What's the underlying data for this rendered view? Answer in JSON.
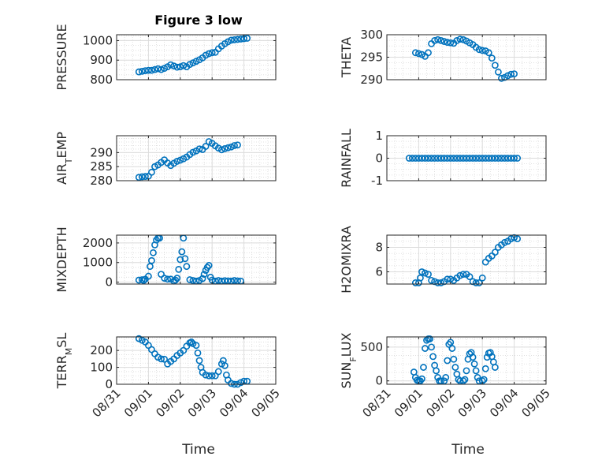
{
  "figure": {
    "title": "Figure 3 low"
  },
  "colors": {
    "marker": "#0072BD",
    "axis": "#262626",
    "grid": "#d9d9d9"
  },
  "chart_data": [
    {
      "type": "scatter",
      "ylabel": "PRESSURE",
      "ylabel_sub": "",
      "ylim": [
        800,
        1030
      ],
      "yticks": [
        800,
        900,
        1000
      ],
      "xlim": [
        0,
        5
      ],
      "xticks": [
        "08/31",
        "09/01",
        "09/02",
        "09/03",
        "09/04",
        "09/05"
      ],
      "show_xticklabels": false,
      "title": "Figure 3 low",
      "points": [
        [
          0.7,
          840
        ],
        [
          0.8,
          843
        ],
        [
          0.9,
          846
        ],
        [
          1.0,
          848
        ],
        [
          1.1,
          848
        ],
        [
          1.2,
          852
        ],
        [
          1.3,
          856
        ],
        [
          1.4,
          852
        ],
        [
          1.5,
          858
        ],
        [
          1.6,
          866
        ],
        [
          1.7,
          876
        ],
        [
          1.8,
          870
        ],
        [
          1.9,
          864
        ],
        [
          2.0,
          866
        ],
        [
          2.1,
          872
        ],
        [
          2.2,
          866
        ],
        [
          2.3,
          878
        ],
        [
          2.4,
          886
        ],
        [
          2.5,
          894
        ],
        [
          2.6,
          902
        ],
        [
          2.7,
          912
        ],
        [
          2.8,
          925
        ],
        [
          2.9,
          933
        ],
        [
          3.0,
          938
        ],
        [
          3.1,
          940
        ],
        [
          3.2,
          958
        ],
        [
          3.3,
          972
        ],
        [
          3.4,
          984
        ],
        [
          3.5,
          994
        ],
        [
          3.6,
          1002
        ],
        [
          3.7,
          1004
        ],
        [
          3.8,
          1006
        ],
        [
          3.9,
          1008
        ],
        [
          4.0,
          1010
        ],
        [
          4.1,
          1012
        ]
      ]
    },
    {
      "type": "scatter",
      "ylabel": "THETA",
      "ylabel_sub": "",
      "ylim": [
        290,
        300
      ],
      "yticks": [
        290,
        295,
        300
      ],
      "xlim": [
        0,
        5
      ],
      "xticks": [
        "08/31",
        "09/01",
        "09/02",
        "09/03",
        "09/04",
        "09/05"
      ],
      "show_xticklabels": false,
      "points": [
        [
          0.9,
          296
        ],
        [
          1.0,
          295.8
        ],
        [
          1.1,
          295.6
        ],
        [
          1.2,
          295.2
        ],
        [
          1.3,
          296
        ],
        [
          1.4,
          298
        ],
        [
          1.5,
          298.7
        ],
        [
          1.6,
          298.9
        ],
        [
          1.7,
          298.7
        ],
        [
          1.8,
          298.5
        ],
        [
          1.9,
          298.3
        ],
        [
          2.0,
          298.2
        ],
        [
          2.1,
          298.1
        ],
        [
          2.2,
          298.7
        ],
        [
          2.3,
          299
        ],
        [
          2.4,
          298.9
        ],
        [
          2.5,
          298.6
        ],
        [
          2.6,
          298.2
        ],
        [
          2.7,
          297.8
        ],
        [
          2.8,
          297.2
        ],
        [
          2.9,
          296.7
        ],
        [
          3.0,
          296.5
        ],
        [
          3.1,
          296.4
        ],
        [
          3.2,
          296
        ],
        [
          3.3,
          294.8
        ],
        [
          3.4,
          293.2
        ],
        [
          3.5,
          291.7
        ],
        [
          3.6,
          290.3
        ],
        [
          3.7,
          290.5
        ],
        [
          3.8,
          290.9
        ],
        [
          3.9,
          291.2
        ],
        [
          4.0,
          291.3
        ]
      ]
    },
    {
      "type": "scatter",
      "ylabel": "AIR",
      "ylabel_sub": "T",
      "ylabel_rest": "EMP",
      "ylim": [
        280,
        296
      ],
      "yticks": [
        280,
        285,
        290
      ],
      "xlim": [
        0,
        5
      ],
      "xticks": [
        "08/31",
        "09/01",
        "09/02",
        "09/03",
        "09/04",
        "09/05"
      ],
      "show_xticklabels": false,
      "points": [
        [
          0.7,
          281.2
        ],
        [
          0.8,
          281.4
        ],
        [
          0.9,
          281.5
        ],
        [
          1.0,
          281.6
        ],
        [
          1.1,
          283
        ],
        [
          1.2,
          285
        ],
        [
          1.3,
          285.6
        ],
        [
          1.4,
          286.5
        ],
        [
          1.5,
          287.4
        ],
        [
          1.6,
          286.3
        ],
        [
          1.7,
          285.4
        ],
        [
          1.8,
          286.2
        ],
        [
          1.9,
          286.9
        ],
        [
          2.0,
          287.3
        ],
        [
          2.1,
          287.8
        ],
        [
          2.2,
          288.4
        ],
        [
          2.3,
          289.3
        ],
        [
          2.4,
          290.1
        ],
        [
          2.5,
          290.6
        ],
        [
          2.6,
          291.3
        ],
        [
          2.7,
          291.1
        ],
        [
          2.8,
          292.2
        ],
        [
          2.9,
          293.9
        ],
        [
          3.0,
          293.3
        ],
        [
          3.1,
          292.4
        ],
        [
          3.2,
          291.6
        ],
        [
          3.3,
          291
        ],
        [
          3.4,
          291.4
        ],
        [
          3.5,
          291.7
        ],
        [
          3.6,
          292
        ],
        [
          3.7,
          292.5
        ],
        [
          3.8,
          292.7
        ]
      ]
    },
    {
      "type": "scatter",
      "ylabel": "RAINFALL",
      "ylabel_sub": "",
      "ylim": [
        -1,
        1
      ],
      "yticks": [
        -1,
        0,
        1
      ],
      "xlim": [
        0,
        5
      ],
      "xticks": [
        "08/31",
        "09/01",
        "09/02",
        "09/03",
        "09/04",
        "09/05"
      ],
      "show_xticklabels": false,
      "points": [
        [
          0.7,
          0
        ],
        [
          0.8,
          0
        ],
        [
          0.9,
          0
        ],
        [
          1.0,
          0
        ],
        [
          1.1,
          0
        ],
        [
          1.2,
          0
        ],
        [
          1.3,
          0
        ],
        [
          1.4,
          0
        ],
        [
          1.5,
          0
        ],
        [
          1.6,
          0
        ],
        [
          1.7,
          0
        ],
        [
          1.8,
          0
        ],
        [
          1.9,
          0
        ],
        [
          2.0,
          0
        ],
        [
          2.1,
          0
        ],
        [
          2.2,
          0
        ],
        [
          2.3,
          0
        ],
        [
          2.4,
          0
        ],
        [
          2.5,
          0
        ],
        [
          2.6,
          0
        ],
        [
          2.7,
          0
        ],
        [
          2.8,
          0
        ],
        [
          2.9,
          0
        ],
        [
          3.0,
          0
        ],
        [
          3.1,
          0
        ],
        [
          3.2,
          0
        ],
        [
          3.3,
          0
        ],
        [
          3.4,
          0
        ],
        [
          3.5,
          0
        ],
        [
          3.6,
          0
        ],
        [
          3.7,
          0
        ],
        [
          3.8,
          0
        ],
        [
          3.9,
          0
        ],
        [
          4.0,
          0
        ],
        [
          4.1,
          0
        ]
      ]
    },
    {
      "type": "scatter",
      "ylabel": "MIXDEPTH",
      "ylabel_sub": "",
      "ylim": [
        -100,
        2400
      ],
      "yticks": [
        0,
        1000,
        2000
      ],
      "xlim": [
        0,
        5
      ],
      "xticks": [
        "08/31",
        "09/01",
        "09/02",
        "09/03",
        "09/04",
        "09/05"
      ],
      "show_xticklabels": false,
      "points": [
        [
          0.7,
          100
        ],
        [
          0.8,
          120
        ],
        [
          0.85,
          80
        ],
        [
          0.9,
          150
        ],
        [
          1.0,
          300
        ],
        [
          1.05,
          800
        ],
        [
          1.1,
          1100
        ],
        [
          1.15,
          1500
        ],
        [
          1.2,
          1900
        ],
        [
          1.25,
          2150
        ],
        [
          1.3,
          2250
        ],
        [
          1.35,
          2250
        ],
        [
          1.4,
          400
        ],
        [
          1.5,
          200
        ],
        [
          1.6,
          150
        ],
        [
          1.7,
          150
        ],
        [
          1.8,
          50
        ],
        [
          1.85,
          100
        ],
        [
          1.9,
          200
        ],
        [
          1.95,
          650
        ],
        [
          2.0,
          1150
        ],
        [
          2.05,
          1550
        ],
        [
          2.1,
          2250
        ],
        [
          2.15,
          1200
        ],
        [
          2.2,
          800
        ],
        [
          2.3,
          120
        ],
        [
          2.4,
          80
        ],
        [
          2.5,
          50
        ],
        [
          2.6,
          80
        ],
        [
          2.7,
          180
        ],
        [
          2.75,
          400
        ],
        [
          2.8,
          600
        ],
        [
          2.85,
          750
        ],
        [
          2.9,
          850
        ],
        [
          2.95,
          250
        ],
        [
          3.0,
          100
        ],
        [
          3.1,
          50
        ],
        [
          3.2,
          80
        ],
        [
          3.3,
          50
        ],
        [
          3.4,
          70
        ],
        [
          3.5,
          60
        ],
        [
          3.6,
          50
        ],
        [
          3.7,
          80
        ],
        [
          3.8,
          60
        ],
        [
          3.9,
          50
        ]
      ]
    },
    {
      "type": "scatter",
      "ylabel": "H2OMIXRA",
      "ylabel_sub": "",
      "ylim": [
        5,
        9
      ],
      "yticks": [
        6,
        8
      ],
      "xlim": [
        0,
        5
      ],
      "xticks": [
        "08/31",
        "09/01",
        "09/02",
        "09/03",
        "09/04",
        "09/05"
      ],
      "show_xticklabels": false,
      "points": [
        [
          0.9,
          5.1
        ],
        [
          1.0,
          5.1
        ],
        [
          1.05,
          5.5
        ],
        [
          1.1,
          6
        ],
        [
          1.2,
          5.9
        ],
        [
          1.3,
          5.8
        ],
        [
          1.4,
          5.3
        ],
        [
          1.5,
          5.2
        ],
        [
          1.6,
          5.1
        ],
        [
          1.7,
          5.1
        ],
        [
          1.8,
          5.2
        ],
        [
          1.9,
          5.4
        ],
        [
          2.0,
          5.4
        ],
        [
          2.1,
          5.3
        ],
        [
          2.2,
          5.5
        ],
        [
          2.3,
          5.7
        ],
        [
          2.4,
          5.8
        ],
        [
          2.5,
          5.8
        ],
        [
          2.6,
          5.6
        ],
        [
          2.7,
          5.2
        ],
        [
          2.8,
          5.1
        ],
        [
          2.9,
          5.1
        ],
        [
          3.0,
          5.5
        ],
        [
          3.1,
          6.8
        ],
        [
          3.2,
          7.1
        ],
        [
          3.3,
          7.3
        ],
        [
          3.4,
          7.6
        ],
        [
          3.5,
          8
        ],
        [
          3.6,
          8.2
        ],
        [
          3.7,
          8.4
        ],
        [
          3.8,
          8.5
        ],
        [
          3.9,
          8.7
        ],
        [
          4.0,
          8.8
        ],
        [
          4.1,
          8.7
        ]
      ]
    },
    {
      "type": "scatter",
      "ylabel": "TERR",
      "ylabel_sub": "M",
      "ylabel_rest": "SL",
      "ylim": [
        0,
        280
      ],
      "yticks": [
        0,
        100,
        200
      ],
      "xlim": [
        0,
        5
      ],
      "xticks": [
        "08/31",
        "09/01",
        "09/02",
        "09/03",
        "09/04",
        "09/05"
      ],
      "show_xticklabels": true,
      "points": [
        [
          0.7,
          270
        ],
        [
          0.8,
          260
        ],
        [
          0.9,
          250
        ],
        [
          1.0,
          230
        ],
        [
          1.1,
          205
        ],
        [
          1.2,
          180
        ],
        [
          1.3,
          160
        ],
        [
          1.4,
          150
        ],
        [
          1.5,
          148
        ],
        [
          1.6,
          120
        ],
        [
          1.7,
          135
        ],
        [
          1.8,
          150
        ],
        [
          1.9,
          170
        ],
        [
          2.0,
          185
        ],
        [
          2.1,
          200
        ],
        [
          2.2,
          225
        ],
        [
          2.3,
          245
        ],
        [
          2.35,
          250
        ],
        [
          2.4,
          240
        ],
        [
          2.5,
          230
        ],
        [
          2.55,
          185
        ],
        [
          2.6,
          140
        ],
        [
          2.65,
          100
        ],
        [
          2.7,
          70
        ],
        [
          2.8,
          55
        ],
        [
          2.9,
          50
        ],
        [
          3.0,
          50
        ],
        [
          3.1,
          50
        ],
        [
          3.2,
          75
        ],
        [
          3.3,
          120
        ],
        [
          3.35,
          140
        ],
        [
          3.4,
          110
        ],
        [
          3.45,
          55
        ],
        [
          3.5,
          25
        ],
        [
          3.6,
          5
        ],
        [
          3.7,
          0
        ],
        [
          3.8,
          0
        ],
        [
          3.9,
          10
        ],
        [
          4.0,
          18
        ],
        [
          4.1,
          18
        ]
      ]
    },
    {
      "type": "scatter",
      "ylabel": "SUN",
      "ylabel_sub": "F",
      "ylabel_rest": "LUX",
      "ylim": [
        -50,
        650
      ],
      "yticks": [
        0,
        500
      ],
      "xlim": [
        0,
        5
      ],
      "xticks": [
        "08/31",
        "09/01",
        "09/02",
        "09/03",
        "09/04",
        "09/05"
      ],
      "show_xticklabels": true,
      "points": [
        [
          0.85,
          130
        ],
        [
          0.9,
          50
        ],
        [
          0.95,
          10
        ],
        [
          1.0,
          0
        ],
        [
          1.05,
          0
        ],
        [
          1.1,
          30
        ],
        [
          1.15,
          200
        ],
        [
          1.2,
          480
        ],
        [
          1.25,
          600
        ],
        [
          1.3,
          620
        ],
        [
          1.35,
          620
        ],
        [
          1.4,
          500
        ],
        [
          1.45,
          360
        ],
        [
          1.5,
          230
        ],
        [
          1.55,
          150
        ],
        [
          1.6,
          50
        ],
        [
          1.65,
          0
        ],
        [
          1.7,
          0
        ],
        [
          1.8,
          0
        ],
        [
          1.85,
          50
        ],
        [
          1.9,
          300
        ],
        [
          1.95,
          540
        ],
        [
          2.0,
          570
        ],
        [
          2.05,
          480
        ],
        [
          2.1,
          320
        ],
        [
          2.15,
          200
        ],
        [
          2.2,
          100
        ],
        [
          2.25,
          20
        ],
        [
          2.3,
          0
        ],
        [
          2.4,
          0
        ],
        [
          2.45,
          20
        ],
        [
          2.5,
          150
        ],
        [
          2.55,
          320
        ],
        [
          2.6,
          400
        ],
        [
          2.65,
          420
        ],
        [
          2.7,
          350
        ],
        [
          2.75,
          250
        ],
        [
          2.8,
          150
        ],
        [
          2.85,
          50
        ],
        [
          2.9,
          0
        ],
        [
          3.0,
          0
        ],
        [
          3.05,
          20
        ],
        [
          3.1,
          180
        ],
        [
          3.15,
          350
        ],
        [
          3.2,
          410
        ],
        [
          3.25,
          420
        ],
        [
          3.3,
          360
        ],
        [
          3.35,
          280
        ],
        [
          3.4,
          200
        ]
      ]
    }
  ]
}
